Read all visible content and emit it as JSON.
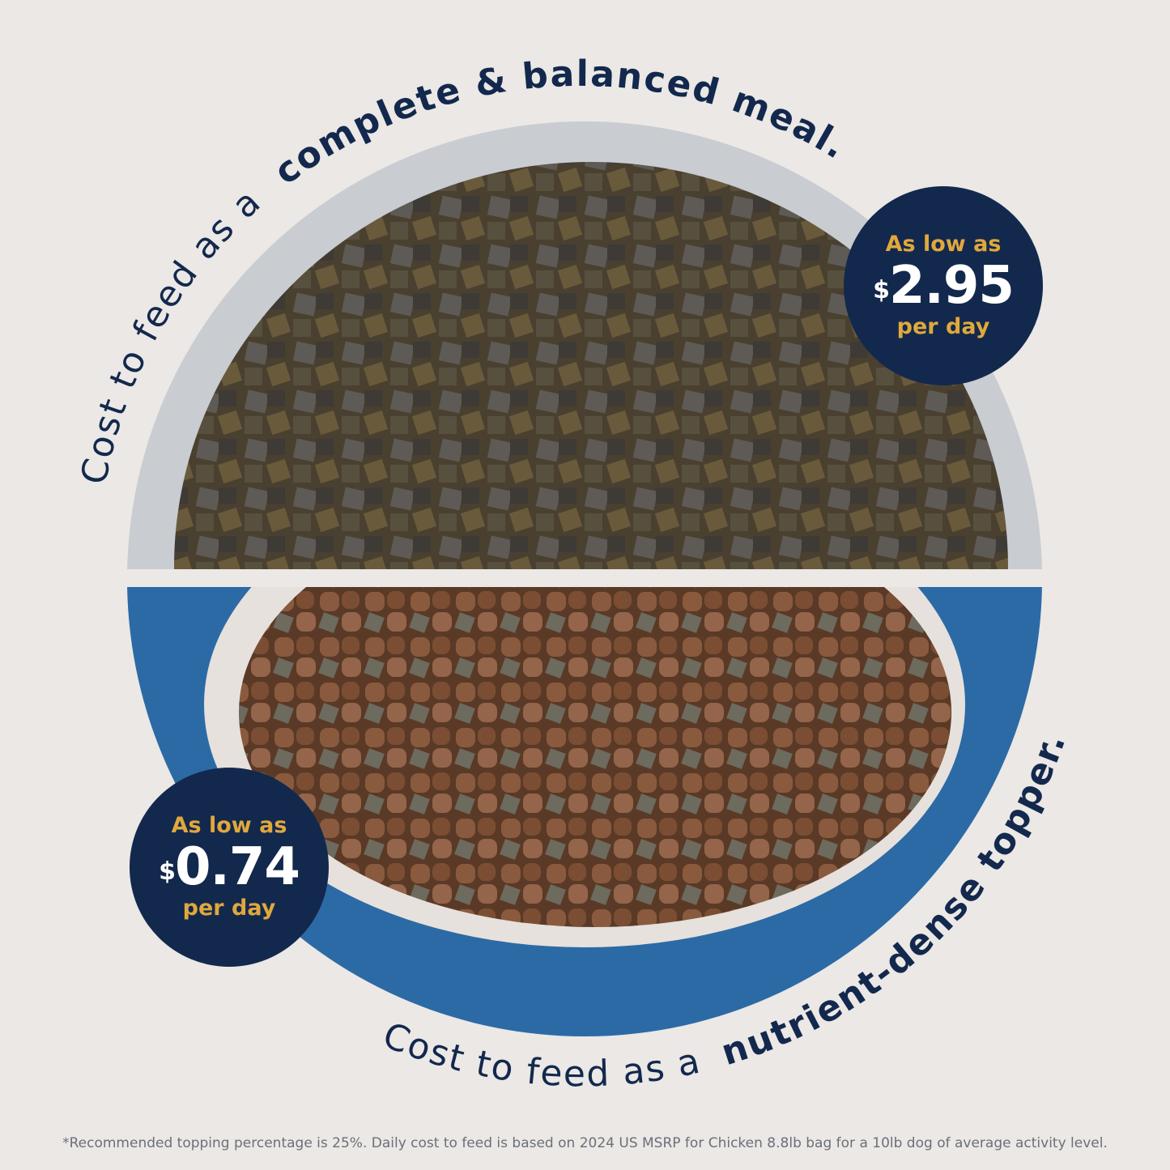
{
  "top_heading": {
    "regular": "Cost to feed as a ",
    "bold": "complete & balanced meal."
  },
  "bottom_heading": {
    "regular": "Cost to feed as a ",
    "bold": "nutrient-dense topper.",
    "mark": "*"
  },
  "badge_top": {
    "label": "As low as",
    "currency": "$",
    "price": "2.95",
    "unit": "per day"
  },
  "badge_bottom": {
    "label": "As low as",
    "currency": "$",
    "price": "0.74",
    "unit": "per day"
  },
  "footnote": "*Recommended topping percentage is 25%. Daily cost to feed is based on 2024 US MSRP for Chicken 8.8lb bag for a 10lb dog of average activity level.",
  "colors": {
    "background": "#ebe8e5",
    "navy": "#13284d",
    "gold": "#e0a83c",
    "bowl_blue": "#2c6aa6",
    "bowl_gray": "#c9ccd0"
  }
}
